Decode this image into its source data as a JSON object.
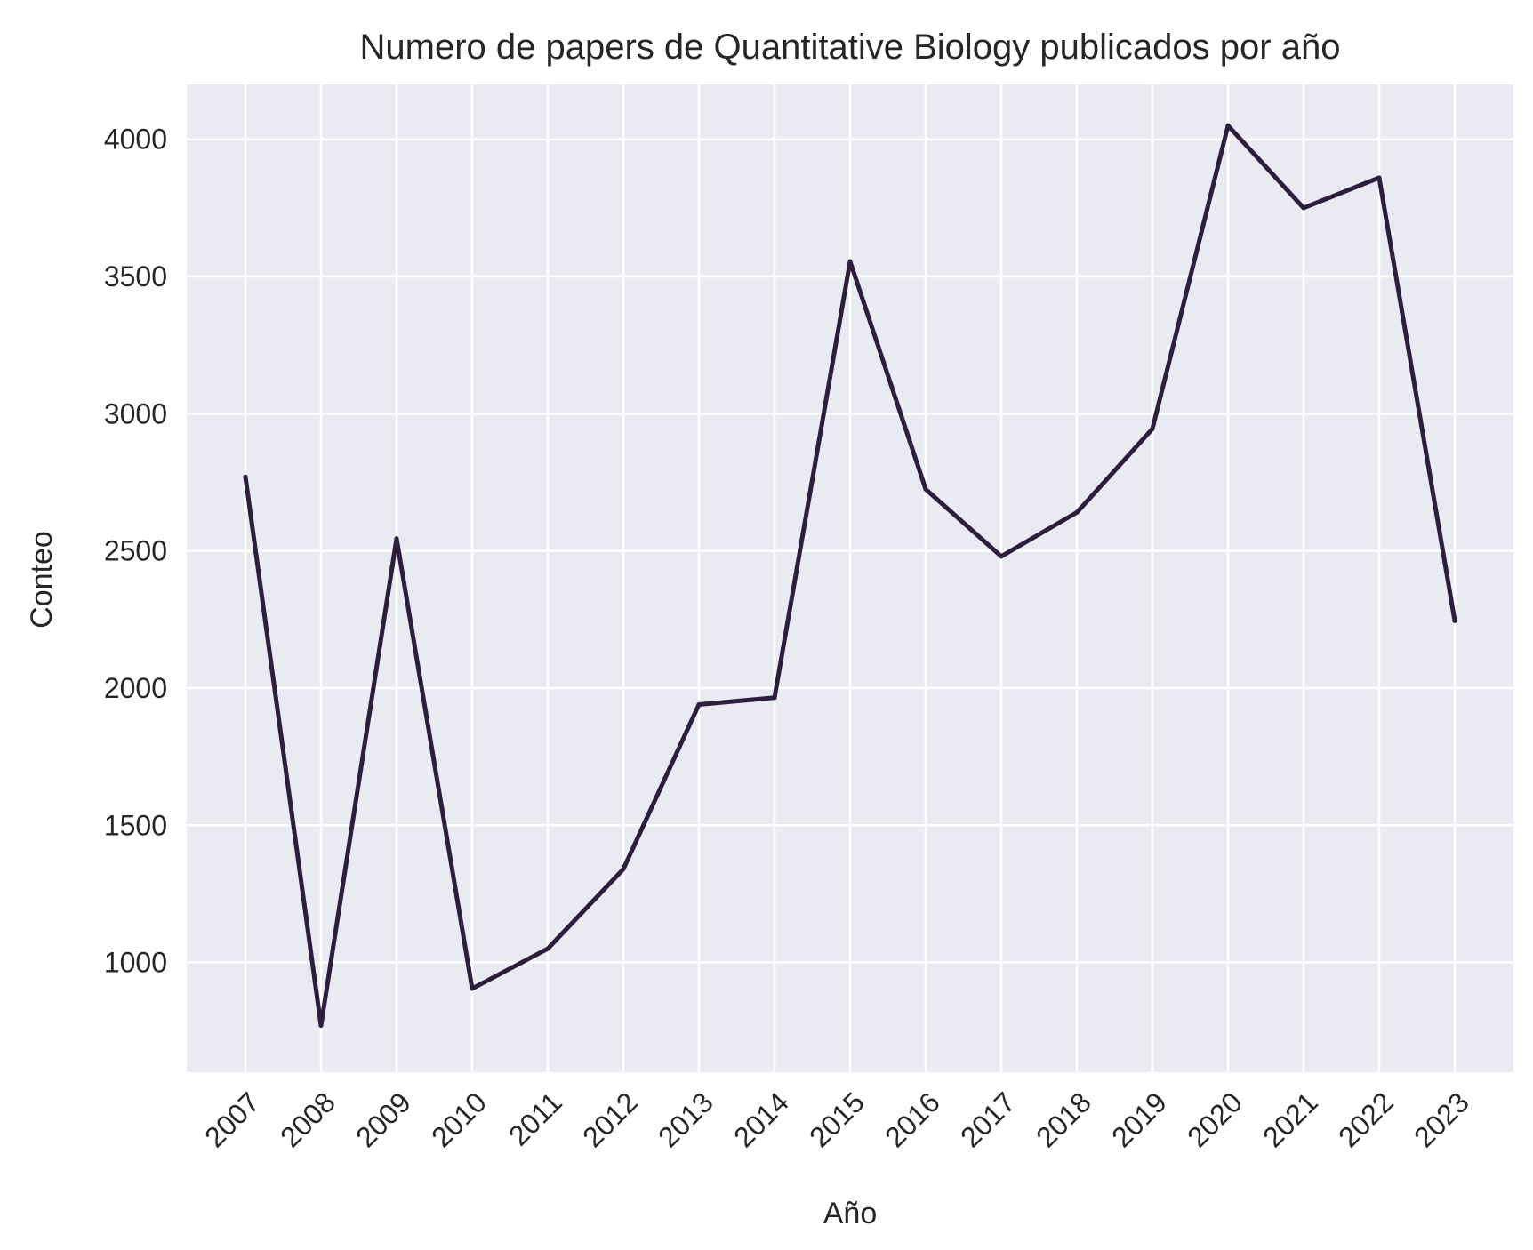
{
  "chart_data": {
    "type": "line",
    "title": "Numero de papers de Quantitative Biology publicados por año",
    "xlabel": "Año",
    "ylabel": "Conteo",
    "categories": [
      "2007",
      "2008",
      "2009",
      "2010",
      "2011",
      "2012",
      "2013",
      "2014",
      "2015",
      "2016",
      "2017",
      "2018",
      "2019",
      "2020",
      "2021",
      "2022",
      "2023"
    ],
    "series": [
      {
        "name": "Conteo",
        "values": [
          2770,
          770,
          2545,
          905,
          1050,
          1340,
          1940,
          1965,
          3555,
          2725,
          2480,
          2640,
          2945,
          4050,
          3750,
          3860,
          2245
        ],
        "color": "#2d1e3e"
      }
    ],
    "yticks": [
      1000,
      1500,
      2000,
      2500,
      3000,
      3500,
      4000
    ],
    "ylim": [
      600,
      4200
    ],
    "grid": true,
    "background": "#eaeaf2",
    "grid_color": "#ffffff"
  }
}
